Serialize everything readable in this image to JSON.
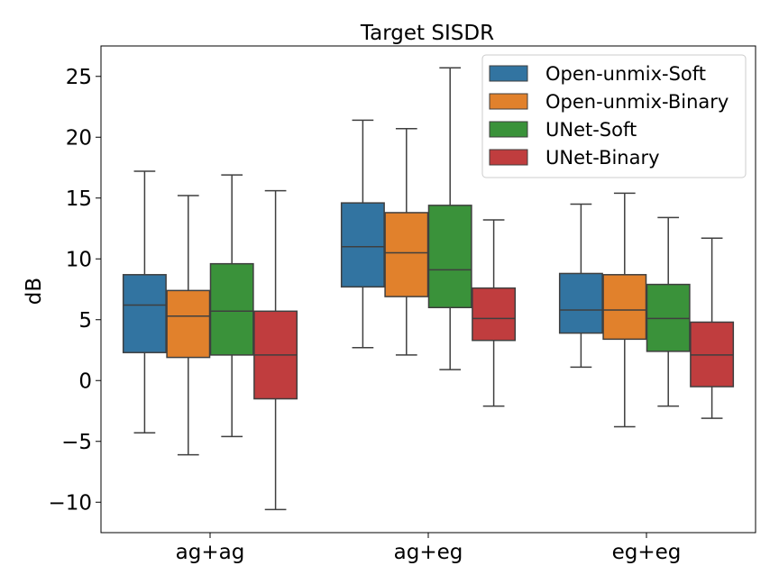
{
  "chart_data": {
    "type": "box",
    "title": "Target SISDR",
    "xlabel": "",
    "ylabel": "dB",
    "ylim": [
      -12.5,
      27.5
    ],
    "yticks": [
      -10,
      -5,
      0,
      5,
      10,
      15,
      20,
      25
    ],
    "ytick_labels": [
      "−10",
      "−5",
      "0",
      "5",
      "10",
      "15",
      "20",
      "25"
    ],
    "categories": [
      "ag+ag",
      "ag+eg",
      "eg+eg"
    ],
    "grid": false,
    "legend_position": "top-right",
    "series": [
      {
        "name": "Open-unmix-Soft",
        "color": "#3274a1",
        "boxes": [
          {
            "whislo": -4.3,
            "q1": 2.3,
            "med": 6.2,
            "q3": 8.7,
            "whishi": 17.2
          },
          {
            "whislo": 2.7,
            "q1": 7.7,
            "med": 11.0,
            "q3": 14.6,
            "whishi": 21.4
          },
          {
            "whislo": 1.1,
            "q1": 3.9,
            "med": 5.8,
            "q3": 8.8,
            "whishi": 14.5
          }
        ]
      },
      {
        "name": "Open-unmix-Binary",
        "color": "#e1812c",
        "boxes": [
          {
            "whislo": -6.1,
            "q1": 1.9,
            "med": 5.3,
            "q3": 7.4,
            "whishi": 15.2
          },
          {
            "whislo": 2.1,
            "q1": 6.9,
            "med": 10.5,
            "q3": 13.8,
            "whishi": 20.7
          },
          {
            "whislo": -3.8,
            "q1": 3.4,
            "med": 5.8,
            "q3": 8.7,
            "whishi": 15.4
          }
        ]
      },
      {
        "name": "UNet-Soft",
        "color": "#3a923a",
        "boxes": [
          {
            "whislo": -4.6,
            "q1": 2.1,
            "med": 5.7,
            "q3": 9.6,
            "whishi": 16.9
          },
          {
            "whislo": 0.9,
            "q1": 6.0,
            "med": 9.1,
            "q3": 14.4,
            "whishi": 25.7
          },
          {
            "whislo": -2.1,
            "q1": 2.4,
            "med": 5.1,
            "q3": 7.9,
            "whishi": 13.4
          }
        ]
      },
      {
        "name": "UNet-Binary",
        "color": "#c03d3e",
        "boxes": [
          {
            "whislo": -10.6,
            "q1": -1.5,
            "med": 2.1,
            "q3": 5.7,
            "whishi": 15.6
          },
          {
            "whislo": -2.1,
            "q1": 3.3,
            "med": 5.1,
            "q3": 7.6,
            "whishi": 13.2
          },
          {
            "whislo": -3.1,
            "q1": -0.5,
            "med": 2.1,
            "q3": 4.8,
            "whishi": 11.7
          }
        ]
      }
    ]
  }
}
